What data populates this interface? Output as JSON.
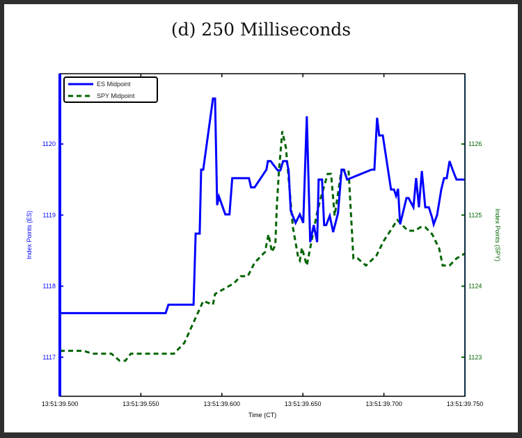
{
  "chart_data": {
    "type": "line",
    "title": "(d) 250 Milliseconds",
    "xlabel": "Time (CT)",
    "ylabel_left": "Index Points (ES)",
    "ylabel_right": "Index Points (SPY)",
    "x_tick_labels": [
      "13:51:39.500",
      "13:51:39.550",
      "13:51:39.600",
      "13:51:39.650",
      "13:51:39.700",
      "13:51:39.750"
    ],
    "x_range_seconds": [
      39.5,
      39.75
    ],
    "y_left_ticks": [
      1117,
      1118,
      1119,
      1120
    ],
    "y_right_ticks": [
      1123,
      1124,
      1125,
      1126
    ],
    "y_left_range": [
      1116.45,
      1120.99
    ],
    "y_right_range": [
      1122.45,
      1126.99
    ],
    "legend": [
      {
        "label": "ES Midpoint",
        "color": "#0000ff",
        "style": "solid"
      },
      {
        "label": "SPY Midpoint",
        "color": "#006400",
        "style": "dashed"
      }
    ],
    "legend_position": "upper-left",
    "grid": false,
    "series": [
      {
        "name": "ES Midpoint",
        "axis": "left",
        "color": "#0000ff",
        "x": [
          39.5,
          39.5653,
          39.567,
          39.5825,
          39.5838,
          39.5863,
          39.5872,
          39.5885,
          39.5945,
          39.5958,
          39.5971,
          39.5982,
          39.6021,
          39.6047,
          39.6064,
          39.6167,
          39.618,
          39.6202,
          39.6275,
          39.6284,
          39.6301,
          39.6344,
          39.6361,
          39.6378,
          39.64,
          39.6412,
          39.6425,
          39.6455,
          39.6481,
          39.6502,
          39.6524,
          39.6545,
          39.6567,
          39.6588,
          39.6597,
          39.6618,
          39.6631,
          39.6644,
          39.6666,
          39.6687,
          39.6717,
          39.6739,
          39.6752,
          39.6773,
          39.6924,
          39.6941,
          39.6958,
          39.6971,
          39.6993,
          39.7044,
          39.7062,
          39.7075,
          39.7087,
          39.71,
          39.7139,
          39.7152,
          39.7182,
          39.7199,
          39.7216,
          39.7234,
          39.7255,
          39.7277,
          39.7298,
          39.7307,
          39.7328,
          39.7354,
          39.7371,
          39.7388,
          39.7405,
          39.7427,
          39.7448,
          39.75
        ],
        "y": [
          1117.62,
          1117.62,
          1117.74,
          1117.74,
          1118.74,
          1118.74,
          1119.64,
          1119.64,
          1120.64,
          1120.64,
          1119.14,
          1119.26,
          1119.01,
          1119.01,
          1119.52,
          1119.52,
          1119.39,
          1119.39,
          1119.64,
          1119.76,
          1119.76,
          1119.63,
          1119.63,
          1119.76,
          1119.76,
          1119.63,
          1119.06,
          1118.89,
          1119.01,
          1118.89,
          1120.39,
          1118.62,
          1118.86,
          1118.62,
          1119.5,
          1119.5,
          1118.86,
          1118.86,
          1118.99,
          1118.76,
          1119.03,
          1119.64,
          1119.64,
          1119.5,
          1119.64,
          1119.64,
          1120.37,
          1120.12,
          1120.12,
          1119.36,
          1119.36,
          1119.27,
          1119.37,
          1118.87,
          1119.24,
          1119.24,
          1119.11,
          1119.52,
          1119.11,
          1119.62,
          1119.11,
          1119.11,
          1118.96,
          1118.87,
          1119.0,
          1119.36,
          1119.52,
          1119.52,
          1119.76,
          1119.62,
          1119.5,
          1119.5
        ]
      },
      {
        "name": "SPY Midpoint",
        "axis": "right",
        "color": "#006400",
        "x": [
          39.5,
          39.5146,
          39.5202,
          39.5318,
          39.5369,
          39.5404,
          39.5438,
          39.5704,
          39.5768,
          39.5825,
          39.5885,
          39.5945,
          39.5958,
          39.6074,
          39.6117,
          39.616,
          39.6202,
          39.6245,
          39.6266,
          39.6288,
          39.6309,
          39.633,
          39.6339,
          39.6352,
          39.6373,
          39.6395,
          39.6438,
          39.6472,
          39.6481,
          39.6494,
          39.6524,
          39.6588,
          39.661,
          39.6653,
          39.6674,
          39.6696,
          39.6738,
          39.6782,
          39.6812,
          39.6838,
          39.6889,
          39.6954,
          39.6997,
          39.7083,
          39.7148,
          39.7191,
          39.7225,
          39.7255,
          39.7298,
          39.7341,
          39.7363,
          39.7405,
          39.7448,
          39.75
        ],
        "y": [
          1123.09,
          1123.09,
          1123.05,
          1123.05,
          1122.95,
          1122.95,
          1123.05,
          1123.05,
          1123.2,
          1123.49,
          1123.79,
          1123.74,
          1123.89,
          1124.04,
          1124.14,
          1124.14,
          1124.33,
          1124.43,
          1124.48,
          1124.73,
          1124.48,
          1124.58,
          1125.12,
          1125.61,
          1126.18,
          1125.95,
          1124.83,
          1124.39,
          1124.36,
          1124.54,
          1124.29,
          1125.04,
          1125.24,
          1125.58,
          1125.58,
          1124.99,
          1125.63,
          1125.63,
          1124.39,
          1124.39,
          1124.29,
          1124.43,
          1124.63,
          1124.93,
          1124.78,
          1124.78,
          1124.83,
          1124.83,
          1124.73,
          1124.53,
          1124.29,
          1124.29,
          1124.39,
          1124.46
        ]
      }
    ]
  }
}
